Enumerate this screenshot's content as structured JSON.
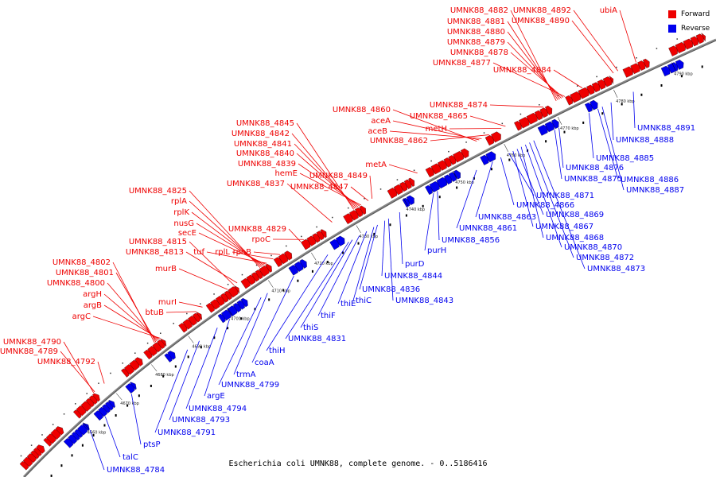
{
  "legend": {
    "forward": "Forward",
    "reverse": "Reverse"
  },
  "colors": {
    "forward": "#ee0000",
    "reverse": "#0000ee",
    "backbone": "#808080"
  },
  "caption": "Escherichia coli UMNK88, complete genome. - 0..5186416",
  "ticks": [
    "4660 kbp",
    "4670 kbp",
    "4680 kbp",
    "4690 kbp",
    "4700 kbp",
    "4710 kbp",
    "4720 kbp",
    "4730 kbp",
    "4740 kbp",
    "4750 kbp",
    "4760 kbp",
    "4770 kbp",
    "4780 kbp",
    "4790 kbp"
  ],
  "forward_genes": [
    "UMNK88_4882",
    "UMNK88_4881",
    "UMNK88_4880",
    "UMNK88_4879",
    "UMNK88_4878",
    "UMNK88_4877",
    "UMNK88_4892",
    "UMNK88_4890",
    "ubiA",
    "UMNK88_4884",
    "UMNK88_4874",
    "UMNK88_4865",
    "UMNK88_4860",
    "aceA",
    "aceB",
    "UMNK88_4862",
    "metH",
    "metA",
    "UMNK88_4845",
    "UMNK88_4842",
    "UMNK88_4841",
    "UMNK88_4840",
    "UMNK88_4839",
    "hemE",
    "UMNK88_4837",
    "UMNK88_4849",
    "UMNK88_4847",
    "UMNK88_4825",
    "rplA",
    "rplK",
    "nusG",
    "secE",
    "tuf",
    "rplL",
    "rpoB",
    "UMNK88_4829",
    "rpoC",
    "UMNK88_4815",
    "UMNK88_4813",
    "murB",
    "UMNK88_4802",
    "UMNK88_4801",
    "UMNK88_4800",
    "argH",
    "argB",
    "argC",
    "murI",
    "btuB",
    "UMNK88_4790",
    "UMNK88_4789",
    "UMNK88_4792"
  ],
  "reverse_genes": [
    "UMNK88_4891",
    "UMNK88_4888",
    "UMNK88_4885",
    "UMNK88_4876",
    "UMNK88_4886",
    "UMNK88_4875",
    "UMNK88_4887",
    "UMNK88_4871",
    "UMNK88_4866",
    "UMNK88_4869",
    "UMNK88_4863",
    "UMNK88_4867",
    "UMNK88_4861",
    "UMNK88_4868",
    "UMNK88_4870",
    "UMNK88_4872",
    "UMNK88_4873",
    "UMNK88_4856",
    "purH",
    "purD",
    "UMNK88_4844",
    "UMNK88_4836",
    "UMNK88_4843",
    "thiC",
    "thiE",
    "thiF",
    "thiS",
    "UMNK88_4831",
    "thiH",
    "coaA",
    "trmA",
    "UMNK88_4799",
    "argE",
    "UMNK88_4794",
    "UMNK88_4793",
    "UMNK88_4791",
    "ptsP",
    "talC",
    "UMNK88_4784"
  ]
}
